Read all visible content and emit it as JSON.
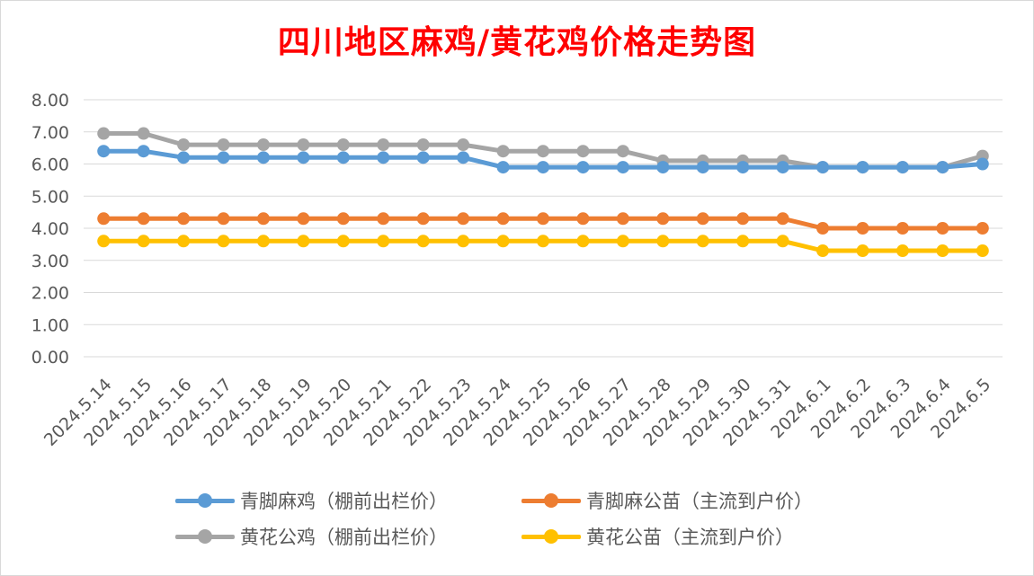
{
  "chart_data": {
    "type": "line",
    "title": "四川地区麻鸡/黄花鸡价格走势图",
    "categories": [
      "2024.5.14",
      "2024.5.15",
      "2024.5.16",
      "2024.5.17",
      "2024.5.18",
      "2024.5.19",
      "2024.5.20",
      "2024.5.21",
      "2024.5.22",
      "2024.5.23",
      "2024.5.24",
      "2024.5.25",
      "2024.5.26",
      "2024.5.27",
      "2024.5.28",
      "2024.5.29",
      "2024.5.30",
      "2024.5.31",
      "2024.6.1",
      "2024.6.2",
      "2024.6.3",
      "2024.6.4",
      "2024.6.5"
    ],
    "ylim": [
      0,
      8
    ],
    "yticks": [
      "0.00",
      "1.00",
      "2.00",
      "3.00",
      "4.00",
      "5.00",
      "6.00",
      "7.00",
      "8.00"
    ],
    "grid": true,
    "legend_position": "bottom",
    "series": [
      {
        "name": "青脚麻鸡（棚前出栏价）",
        "color": "#5b9bd5",
        "values": [
          6.4,
          6.4,
          6.2,
          6.2,
          6.2,
          6.2,
          6.2,
          6.2,
          6.2,
          6.2,
          5.9,
          5.9,
          5.9,
          5.9,
          5.9,
          5.9,
          5.9,
          5.9,
          5.9,
          5.9,
          5.9,
          5.9,
          6.0
        ]
      },
      {
        "name": "青脚麻公苗（主流到户价）",
        "color": "#ed7d31",
        "values": [
          4.3,
          4.3,
          4.3,
          4.3,
          4.3,
          4.3,
          4.3,
          4.3,
          4.3,
          4.3,
          4.3,
          4.3,
          4.3,
          4.3,
          4.3,
          4.3,
          4.3,
          4.3,
          4.0,
          4.0,
          4.0,
          4.0,
          4.0
        ]
      },
      {
        "name": "黄花公鸡（棚前出栏价）",
        "color": "#a5a5a5",
        "values": [
          6.95,
          6.95,
          6.6,
          6.6,
          6.6,
          6.6,
          6.6,
          6.6,
          6.6,
          6.6,
          6.4,
          6.4,
          6.4,
          6.4,
          6.1,
          6.1,
          6.1,
          6.1,
          5.9,
          5.9,
          5.9,
          5.9,
          6.25
        ]
      },
      {
        "name": "黄花公苗（主流到户价）",
        "color": "#ffc000",
        "values": [
          3.6,
          3.6,
          3.6,
          3.6,
          3.6,
          3.6,
          3.6,
          3.6,
          3.6,
          3.6,
          3.6,
          3.6,
          3.6,
          3.6,
          3.6,
          3.6,
          3.6,
          3.6,
          3.3,
          3.3,
          3.3,
          3.3,
          3.3
        ]
      }
    ]
  }
}
